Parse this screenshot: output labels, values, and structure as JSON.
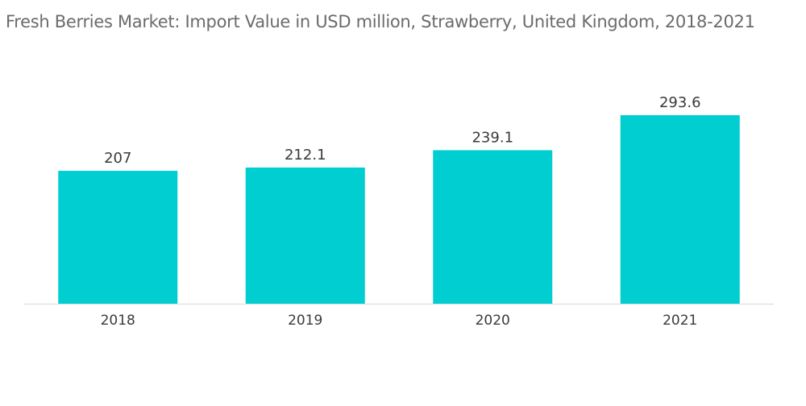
{
  "chart_data": {
    "type": "bar",
    "title": "Fresh Berries Market: Import Value in USD million, Strawberry, United Kingdom, 2018-2021",
    "categories": [
      "2018",
      "2019",
      "2020",
      "2021"
    ],
    "values": [
      207,
      212.1,
      239.1,
      293.6
    ],
    "value_labels": [
      "207",
      "212.1",
      "239.1",
      "293.6"
    ],
    "xlabel": "",
    "ylabel": "",
    "ylim": [
      0,
      293.6
    ],
    "grid": false,
    "legend": "none",
    "bar_color": "#00ced1",
    "baseline_color": "#d9d9d9"
  }
}
